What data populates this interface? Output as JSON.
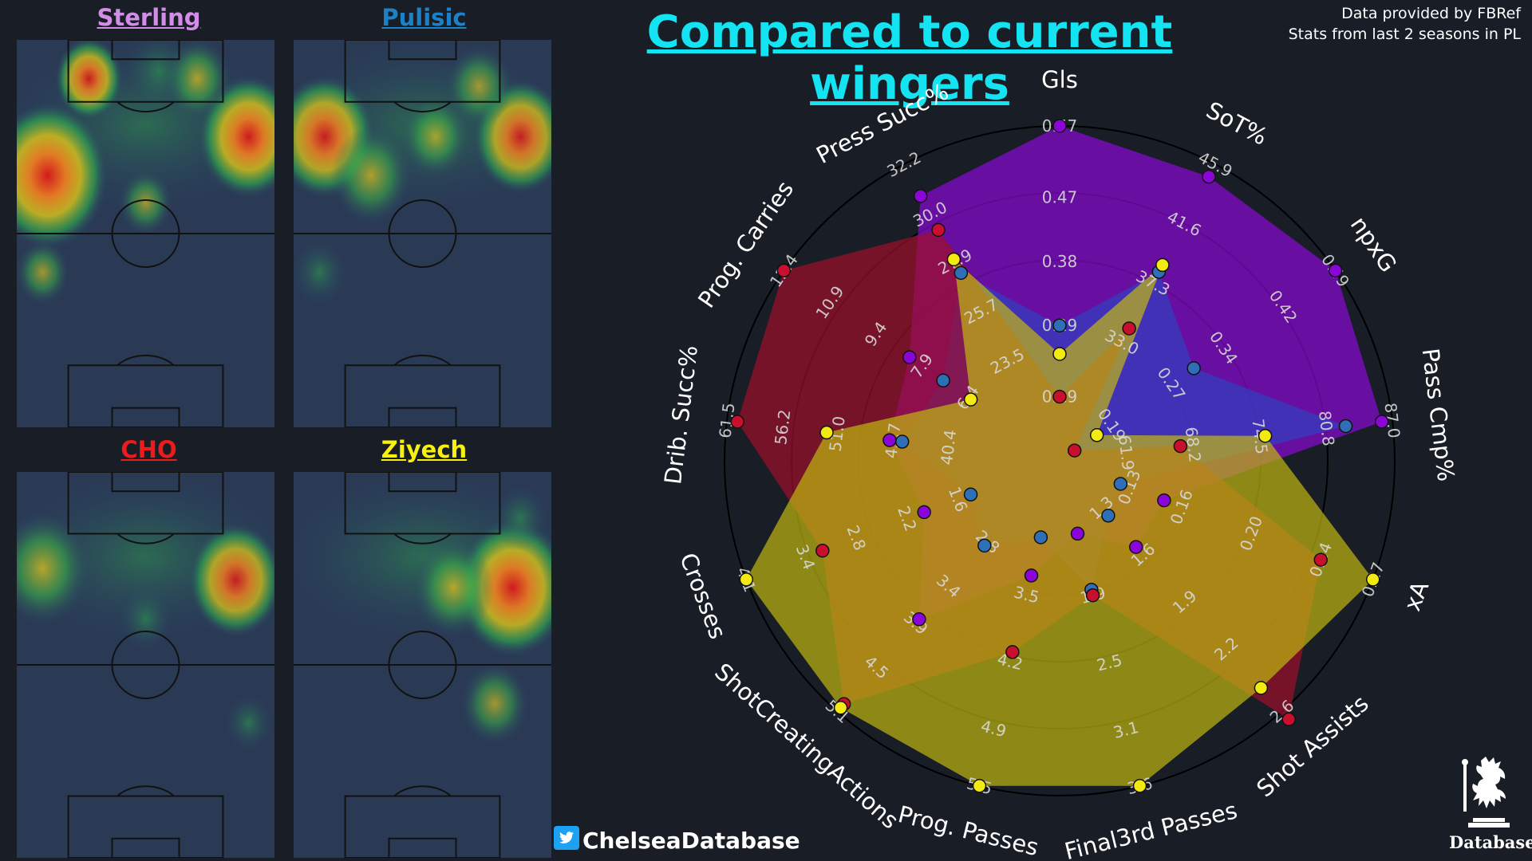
{
  "title": "Compared to current wingers",
  "credits": [
    "Data provided by FBRef",
    "Stats from last 2 seasons in PL"
  ],
  "handle": "ChelseaDatabase",
  "logo_text": "Database",
  "players": [
    {
      "name": "Sterling",
      "color": "#d38de9",
      "hotspots": [
        [
          0.12,
          0.35,
          0.18,
          0.95
        ],
        [
          0.9,
          0.25,
          0.15,
          0.9
        ],
        [
          0.28,
          0.1,
          0.1,
          0.8
        ],
        [
          0.7,
          0.1,
          0.1,
          0.6
        ],
        [
          0.5,
          0.42,
          0.08,
          0.45
        ],
        [
          0.1,
          0.6,
          0.08,
          0.45
        ],
        [
          0.55,
          0.08,
          0.1,
          0.35
        ]
      ]
    },
    {
      "name": "Pulisic",
      "color": "#1b81c8",
      "hotspots": [
        [
          0.12,
          0.25,
          0.15,
          0.8
        ],
        [
          0.88,
          0.25,
          0.14,
          0.75
        ],
        [
          0.3,
          0.35,
          0.12,
          0.6
        ],
        [
          0.55,
          0.25,
          0.1,
          0.5
        ],
        [
          0.72,
          0.12,
          0.1,
          0.45
        ],
        [
          0.1,
          0.6,
          0.08,
          0.4
        ]
      ]
    },
    {
      "name": "CHO",
      "color": "#ee1b1b",
      "hotspots": [
        [
          0.85,
          0.28,
          0.14,
          0.75
        ],
        [
          0.1,
          0.25,
          0.14,
          0.7
        ],
        [
          0.5,
          0.38,
          0.08,
          0.35
        ],
        [
          0.9,
          0.65,
          0.07,
          0.35
        ]
      ]
    },
    {
      "name": "Ziyech",
      "color": "#f8f10c",
      "hotspots": [
        [
          0.85,
          0.3,
          0.17,
          0.9
        ],
        [
          0.62,
          0.3,
          0.12,
          0.7
        ],
        [
          0.78,
          0.6,
          0.1,
          0.45
        ],
        [
          0.88,
          0.12,
          0.08,
          0.4
        ]
      ]
    }
  ],
  "chart_data": {
    "type": "radar",
    "axes": [
      {
        "label": "Gls",
        "ticks": [
          "0.19",
          "0.29",
          "0.38",
          "0.47",
          "0.57"
        ],
        "min": 0.1,
        "max": 0.57
      },
      {
        "label": "SoT%",
        "ticks": [
          "33.0",
          "37.3",
          "41.6",
          "45.9"
        ],
        "min": 24.4,
        "max": 45.9
      },
      {
        "label": "npxG",
        "ticks": [
          "0.19",
          "0.27",
          "0.34",
          "0.42",
          "0.49"
        ],
        "min": 0.12,
        "max": 0.49
      },
      {
        "label": "Pass Cmp%",
        "ticks": [
          "61.9",
          "68.2",
          "74.5",
          "80.8",
          "87.0"
        ],
        "min": 55.6,
        "max": 87.0
      },
      {
        "label": "xA",
        "ticks": [
          "0.13",
          "0.16",
          "0.20",
          "0.24",
          "0.27"
        ],
        "min": 0.09,
        "max": 0.27
      },
      {
        "label": "Shot Assists",
        "ticks": [
          "1.3",
          "1.6",
          "1.9",
          "2.2",
          "2.6"
        ],
        "min": 1.0,
        "max": 2.6
      },
      {
        "label": "Final3rd Passes",
        "ticks": [
          "1.9",
          "2.5",
          "3.1",
          "3.6"
        ],
        "min": 0.7,
        "max": 3.6
      },
      {
        "label": "Prog. Passes",
        "ticks": [
          "3.5",
          "4.2",
          "4.9",
          "5.5"
        ],
        "min": 2.1,
        "max": 5.5
      },
      {
        "label": "ShotCreatingActions",
        "ticks": [
          "2.8",
          "3.4",
          "3.9",
          "4.5",
          "5.1"
        ],
        "min": 1.7,
        "max": 5.1
      },
      {
        "label": "Crosses",
        "ticks": [
          "1.6",
          "2.2",
          "2.8",
          "3.4",
          "4.1"
        ],
        "min": 0.4,
        "max": 4.1
      },
      {
        "label": "Drib. Succ%",
        "ticks": [
          "40.4",
          "45.7",
          "51.0",
          "56.2",
          "61.5"
        ],
        "min": 29.8,
        "max": 61.5
      },
      {
        "label": "Prog. Carries",
        "ticks": [
          "6.4",
          "7.9",
          "9.4",
          "10.9",
          "12.4"
        ],
        "min": 3.4,
        "max": 12.4
      },
      {
        "label": "Press Succ%",
        "ticks": [
          "23.5",
          "25.7",
          "27.9",
          "30.0",
          "32.2"
        ],
        "min": 19.1,
        "max": 32.2
      }
    ],
    "series": [
      {
        "name": "Sterling",
        "color": "#8b05d9",
        "fill": "#8a0ad6",
        "values": [
          0.57,
          45.0,
          0.49,
          86.0,
          0.15,
          1.55,
          1.35,
          3.3,
          3.85,
          2.0,
          46.0,
          8.3,
          30.8
        ]
      },
      {
        "name": "Pulisic",
        "color": "#2f6fb8",
        "fill": "#3040c0",
        "values": [
          0.29,
          38.1,
          0.3,
          82.6,
          0.125,
          1.35,
          1.85,
          2.9,
          2.85,
          1.45,
          44.8,
          7.2,
          27.4
        ]
      },
      {
        "name": "CHO",
        "color": "#c8102e",
        "fill": "#a0102a",
        "values": [
          0.19,
          34.0,
          0.14,
          67.0,
          0.24,
          2.65,
          1.9,
          4.1,
          5.0,
          3.2,
          60.5,
          12.4,
          29.3
        ]
      },
      {
        "name": "Ziyech",
        "color": "#f2ea10",
        "fill": "#c0b810",
        "values": [
          0.25,
          38.6,
          0.17,
          75.0,
          0.27,
          2.45,
          3.6,
          5.5,
          5.05,
          4.1,
          52.0,
          6.3,
          28.0
        ]
      }
    ]
  }
}
